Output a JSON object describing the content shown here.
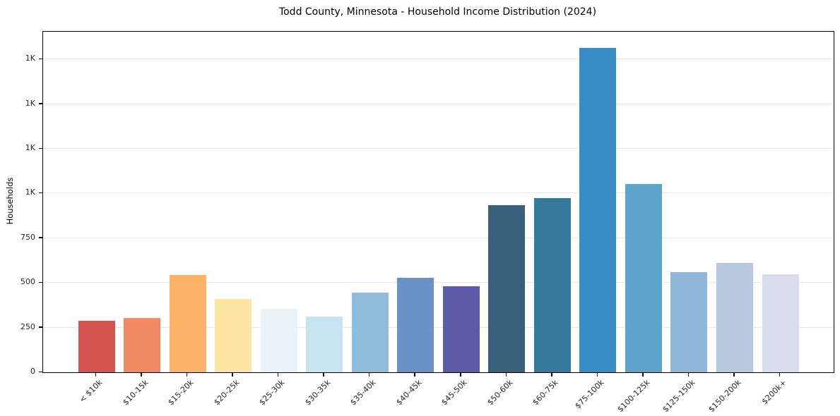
{
  "chart_data": {
    "type": "bar",
    "title": "Todd County, Minnesota - Household Income Distribution (2024)",
    "xlabel": "",
    "ylabel": "Households",
    "categories": [
      "< $10k",
      "$10-15k",
      "$15-20k",
      "$20-25k",
      "$25-30k",
      "$30-35k",
      "$35-40k",
      "$40-45k",
      "$45-50k",
      "$50-60k",
      "$60-75k",
      "$75-100k",
      "$100-125k",
      "$125-150k",
      "$150-200k",
      "$200k+"
    ],
    "values": [
      289,
      303,
      545,
      410,
      357,
      311,
      447,
      529,
      483,
      933,
      976,
      1814,
      1055,
      560,
      613,
      550
    ],
    "bar_colors": [
      "#d6544f",
      "#f18a65",
      "#fab369",
      "#fde3a1",
      "#e8f2f7",
      "#c6e3ef",
      "#90bddc",
      "#6a92c8",
      "#5b5ba9",
      "#386179",
      "#35799d",
      "#378dc3",
      "#5ea5cc",
      "#90b7d9",
      "#b8c9df",
      "#d8dbe9"
    ],
    "ylim": [
      0,
      1905
    ],
    "yticks": [
      {
        "value": 0,
        "label": "0"
      },
      {
        "value": 250,
        "label": "250"
      },
      {
        "value": 500,
        "label": "500"
      },
      {
        "value": 750,
        "label": "750"
      },
      {
        "value": 1000,
        "label": "1K"
      },
      {
        "value": 1250,
        "label": "1K"
      },
      {
        "value": 1500,
        "label": "1K"
      },
      {
        "value": 1750,
        "label": "1K"
      }
    ],
    "grid": "horizontal-gridlines-on",
    "legend": "none",
    "background_color": "#ffffff",
    "x_tick_label_rotation_deg": 45
  }
}
